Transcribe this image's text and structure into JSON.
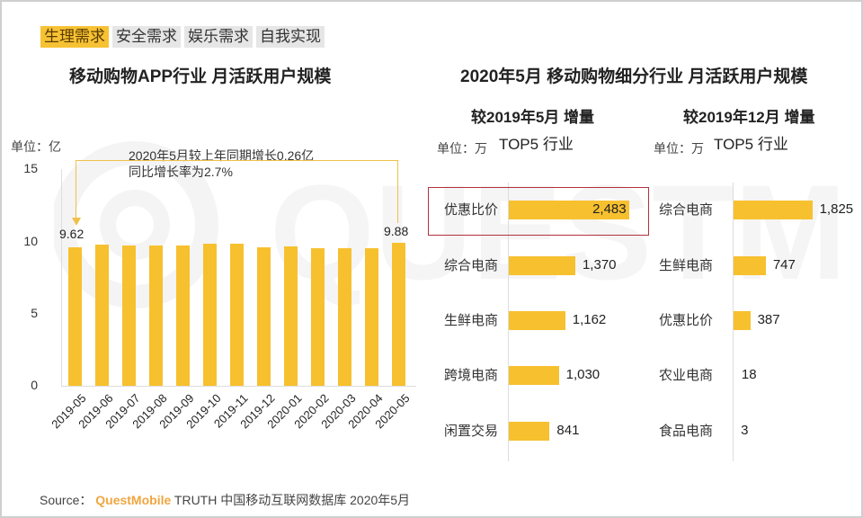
{
  "tabs": [
    {
      "label": "生理需求",
      "active": true
    },
    {
      "label": "安全需求",
      "active": false
    },
    {
      "label": "娱乐需求",
      "active": false
    },
    {
      "label": "自我实现",
      "active": false
    }
  ],
  "left": {
    "title": "移动购物APP行业 月活跃用户规模",
    "unit": "单位：亿",
    "annotation_line1": "2020年5月较上年同期增长0.26亿",
    "annotation_line2": "同比增长率为2.7%",
    "first_label": "9.62",
    "last_label": "9.88",
    "yticks": [
      "15",
      "10",
      "5",
      "0"
    ]
  },
  "right": {
    "title": "2020年5月 移动购物细分行业 月活跃用户规模",
    "panel1": {
      "subtitle": "较2019年5月 增量",
      "unit": "单位：万",
      "top": "TOP5 行业"
    },
    "panel2": {
      "subtitle": "较2019年12月 增量",
      "unit": "单位：万",
      "top": "TOP5 行业"
    }
  },
  "footer": {
    "source": "Source：",
    "brand": "QuestMobile",
    "rest": "TRUTH 中国移动互联网数据库 2020年5月"
  },
  "colors": {
    "bar": "#f7c02f",
    "highlight_box": "#b3313e",
    "active_tab": "#f6c234",
    "inactive_tab": "#e6e6e6"
  },
  "chart_data": [
    {
      "type": "bar",
      "title": "移动购物APP行业 月活跃用户规模",
      "ylabel": "单位：亿",
      "ylim": [
        0,
        15
      ],
      "yticks": [
        0,
        5,
        10,
        15
      ],
      "categories": [
        "2019-05",
        "2019-06",
        "2019-07",
        "2019-08",
        "2019-09",
        "2019-10",
        "2019-11",
        "2019-12",
        "2020-01",
        "2020-02",
        "2020-03",
        "2020-04",
        "2020-05"
      ],
      "values": [
        9.62,
        9.8,
        9.7,
        9.75,
        9.74,
        9.87,
        9.86,
        9.62,
        9.68,
        9.56,
        9.55,
        9.56,
        9.88
      ],
      "data_labels": {
        "2019-05": "9.62",
        "2020-05": "9.88"
      },
      "annotation": "2020年5月较上年同期增长0.26亿 同比增长率为2.7%"
    },
    {
      "type": "bar",
      "orientation": "horizontal",
      "title": "较2019年5月 增量 TOP5 行业",
      "unit": "单位：万",
      "categories": [
        "优惠比价",
        "综合电商",
        "生鲜电商",
        "跨境电商",
        "闲置交易"
      ],
      "values": [
        2483,
        1370,
        1162,
        1030,
        841
      ],
      "value_labels": [
        "2,483",
        "1,370",
        "1,162",
        "1,030",
        "841"
      ],
      "highlighted": "优惠比价"
    },
    {
      "type": "bar",
      "orientation": "horizontal",
      "title": "较2019年12月 增量 TOP5 行业",
      "unit": "单位：万",
      "categories": [
        "综合电商",
        "生鲜电商",
        "优惠比价",
        "农业电商",
        "食品电商"
      ],
      "values": [
        1825,
        747,
        387,
        18,
        3
      ],
      "value_labels": [
        "1,825",
        "747",
        "387",
        "18",
        "3"
      ]
    }
  ]
}
